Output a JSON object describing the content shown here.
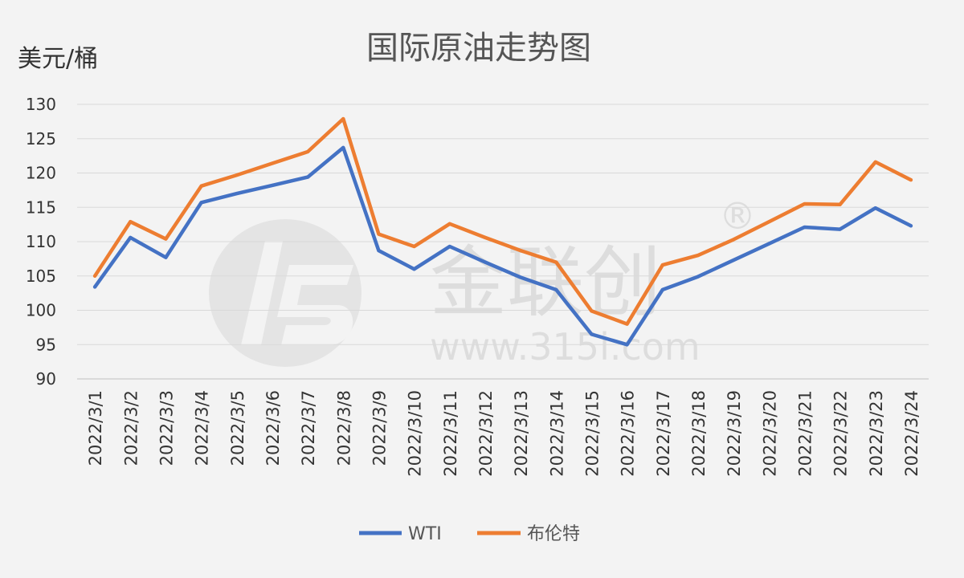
{
  "chart_data": {
    "type": "line",
    "title": "国际原油走势图",
    "ylabel": "美元/桶",
    "xlabel": "",
    "ylim": [
      90,
      130
    ],
    "yticks": [
      90,
      95,
      100,
      105,
      110,
      115,
      120,
      125,
      130
    ],
    "grid": true,
    "legend_position": "bottom",
    "categories": [
      "2022/3/1",
      "2022/3/2",
      "2022/3/3",
      "2022/3/4",
      "2022/3/5",
      "2022/3/6",
      "2022/3/7",
      "2022/3/8",
      "2022/3/9",
      "2022/3/10",
      "2022/3/11",
      "2022/3/12",
      "2022/3/13",
      "2022/3/14",
      "2022/3/15",
      "2022/3/16",
      "2022/3/17",
      "2022/3/18",
      "2022/3/19",
      "2022/3/20",
      "2022/3/21",
      "2022/3/22",
      "2022/3/23",
      "2022/3/24"
    ],
    "series": [
      {
        "name": "WTI",
        "color": "#4472c4",
        "values": [
          103.4,
          110.6,
          107.7,
          115.7,
          117.0,
          118.2,
          119.4,
          123.7,
          108.7,
          106.0,
          109.3,
          107.0,
          104.8,
          103.0,
          96.5,
          95.0,
          103.0,
          104.9,
          107.3,
          109.7,
          112.1,
          111.8,
          114.9,
          112.3
        ]
      },
      {
        "name": "布伦特",
        "color": "#ed7d31",
        "values": [
          105.0,
          112.9,
          110.4,
          118.1,
          119.7,
          121.4,
          123.1,
          127.9,
          111.1,
          109.3,
          112.6,
          110.6,
          108.7,
          107.0,
          99.9,
          98.0,
          106.6,
          108.0,
          110.3,
          112.9,
          115.5,
          115.4,
          121.6,
          119.0
        ]
      }
    ]
  },
  "watermark": {
    "brand": "金联创",
    "url": "www.315i.com",
    "registered_mark": "®"
  }
}
